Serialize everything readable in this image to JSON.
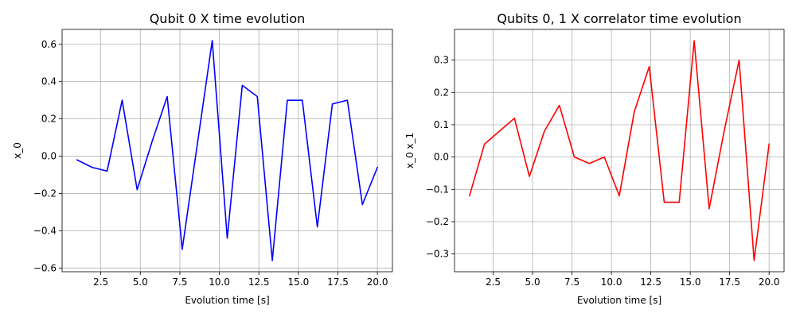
{
  "chart_data": [
    {
      "type": "line",
      "title": "Qubit 0 X time evolution",
      "xlabel": "Evolution time [s]",
      "ylabel": "x_0",
      "xlim": [
        0.05,
        20.95
      ],
      "ylim": [
        -0.62,
        0.68
      ],
      "xticks": [
        2.5,
        5.0,
        7.5,
        10.0,
        12.5,
        15.0,
        17.5,
        20.0
      ],
      "xtick_labels": [
        "2.5",
        "5.0",
        "7.5",
        "10.0",
        "12.5",
        "15.0",
        "17.5",
        "20.0"
      ],
      "yticks": [
        -0.6,
        -0.4,
        -0.2,
        0.0,
        0.2,
        0.4,
        0.6
      ],
      "ytick_labels": [
        "−0.6",
        "−0.4",
        "−0.2",
        "0.0",
        "0.2",
        "0.4",
        "0.6"
      ],
      "grid": true,
      "series": [
        {
          "color": "#0000ff",
          "x": [
            1.0,
            1.95,
            2.9,
            3.85,
            4.8,
            5.75,
            6.7,
            7.65,
            8.6,
            9.55,
            10.5,
            11.45,
            12.4,
            13.35,
            14.3,
            15.25,
            16.2,
            17.15,
            18.1,
            19.05,
            20.0
          ],
          "y": [
            -0.02,
            -0.06,
            -0.08,
            0.3,
            -0.18,
            0.08,
            0.32,
            -0.5,
            0.06,
            0.62,
            -0.44,
            0.38,
            0.32,
            -0.56,
            0.3,
            0.3,
            -0.38,
            0.28,
            0.3,
            -0.26,
            -0.06
          ]
        }
      ]
    },
    {
      "type": "line",
      "title": "Qubits 0, 1 X correlator time evolution",
      "xlabel": "Evolution time [s]",
      "ylabel": "x_0 x_1",
      "xlim": [
        0.05,
        20.95
      ],
      "ylim": [
        -0.355,
        0.395
      ],
      "xticks": [
        2.5,
        5.0,
        7.5,
        10.0,
        12.5,
        15.0,
        17.5,
        20.0
      ],
      "xtick_labels": [
        "2.5",
        "5.0",
        "7.5",
        "10.0",
        "12.5",
        "15.0",
        "17.5",
        "20.0"
      ],
      "yticks": [
        -0.3,
        -0.2,
        -0.1,
        0.0,
        0.1,
        0.2,
        0.3
      ],
      "ytick_labels": [
        "−0.3",
        "−0.2",
        "−0.1",
        "0.0",
        "0.1",
        "0.2",
        "0.3"
      ],
      "grid": true,
      "series": [
        {
          "color": "#ff0000",
          "x": [
            1.0,
            1.95,
            2.9,
            3.85,
            4.8,
            5.75,
            6.7,
            7.65,
            8.6,
            9.55,
            10.5,
            11.45,
            12.4,
            13.35,
            14.3,
            15.25,
            16.2,
            17.15,
            18.1,
            19.05,
            20.0
          ],
          "y": [
            -0.12,
            0.04,
            0.08,
            0.12,
            -0.06,
            0.08,
            0.16,
            0.0,
            -0.02,
            0.0,
            -0.12,
            0.14,
            0.28,
            -0.14,
            -0.14,
            0.36,
            -0.16,
            0.08,
            0.3,
            -0.32,
            0.04
          ]
        }
      ]
    }
  ]
}
